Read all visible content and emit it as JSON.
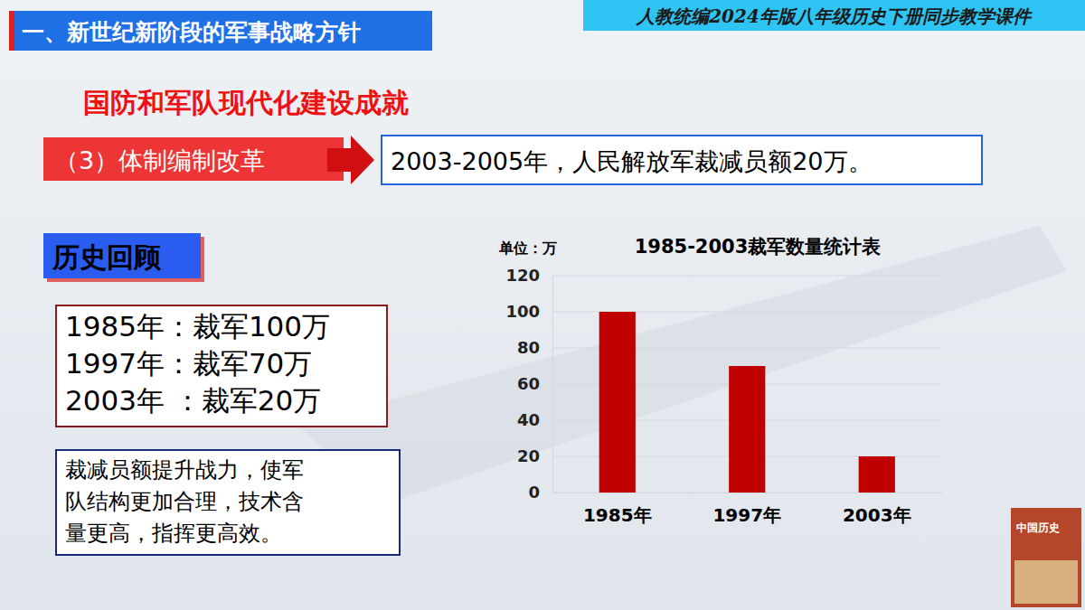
{
  "chart_data": {
    "type": "bar",
    "title": "1985-2003裁军数量统计表",
    "y_label": "单位：万",
    "categories": [
      "1985年",
      "1997年",
      "2003年"
    ],
    "values": [
      100,
      70,
      20
    ],
    "color": "#c00000",
    "ylim": [
      0,
      120
    ],
    "yticks": [
      0,
      20,
      40,
      60,
      80,
      100,
      120
    ],
    "grid": true
  },
  "slide": {
    "header": "一、新世纪新阶段的军事战略方针",
    "banner": "人教统编2024年版八年级历史下册同步教学课件",
    "section_title": "国防和军队现代化建设成就",
    "reform": {
      "label": "（3）体制编制改革",
      "content": "2003-2005年，人民解放军裁减员额20万。"
    },
    "review": {
      "title": "历史回顾",
      "lines": [
        "1985年：裁军100万",
        "1997年：裁军70万",
        "2003年 ：裁军20万"
      ],
      "summary": [
        "裁减员额提升战力，使军",
        "队结构更加合理，技术含",
        "量更高，指挥更高效。"
      ]
    },
    "book_cover": "中国历史"
  }
}
